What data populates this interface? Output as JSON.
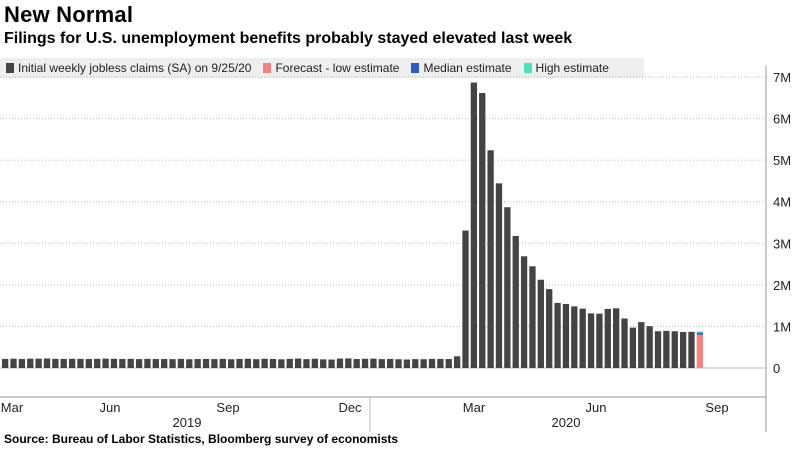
{
  "header": {
    "title": "New Normal",
    "subtitle": "Filings for U.S. unemployment benefits probably stayed elevated last week"
  },
  "legend": [
    {
      "label": "Initial weekly jobless claims (SA) on 9/25/20",
      "color": "#444444"
    },
    {
      "label": "Forecast - low estimate",
      "color": "#f4827e"
    },
    {
      "label": "Median estimate",
      "color": "#3558c4"
    },
    {
      "label": "High estimate",
      "color": "#4fe0bd"
    }
  ],
  "footer": {
    "source": "Source: Bureau of Labor Statistics, Bloomberg survey of economists"
  },
  "chart_data": {
    "type": "bar",
    "stacked": true,
    "y_unit": "thousands of claims",
    "ylim": [
      0,
      7500
    ],
    "yticks": [
      0,
      1000,
      2000,
      3000,
      4000,
      5000,
      6000,
      7000
    ],
    "ytick_labels": [
      "0",
      "1M",
      "2M",
      "3M",
      "4M",
      "5M",
      "6M",
      "7M"
    ],
    "y_axis_side": "right",
    "grid": "horizontal dotted",
    "x_month_labels": [
      "Mar",
      "Jun",
      "Sep",
      "Dec",
      "Mar",
      "Jun",
      "Sep"
    ],
    "x_year_labels": [
      "2019",
      "2020"
    ],
    "claims_series": {
      "name": "Initial weekly jobless claims (SA) on 9/25/20",
      "color": "#444444",
      "values": [
        219,
        223,
        218,
        225,
        224,
        229,
        220,
        218,
        222,
        220,
        216,
        221,
        225,
        222,
        218,
        221,
        214,
        219,
        216,
        216,
        213,
        220,
        211,
        215,
        217,
        214,
        220,
        210,
        218,
        223,
        212,
        223,
        216,
        209,
        220,
        228,
        213,
        223,
        208,
        203,
        227,
        230,
        216,
        222,
        225,
        214,
        219,
        211,
        204,
        213,
        211,
        220,
        218,
        215,
        282,
        3307,
        6867,
        6615,
        5237,
        4442,
        3867,
        3176,
        2687,
        2446,
        2123,
        1897,
        1566,
        1540,
        1482,
        1427,
        1314,
        1307,
        1422,
        1435,
        1191,
        971,
        1104,
        1006,
        884,
        893,
        884,
        866,
        870
      ]
    },
    "forecast": {
      "low_estimate": 800,
      "median_estimate": 850,
      "high_estimate": 880
    }
  }
}
